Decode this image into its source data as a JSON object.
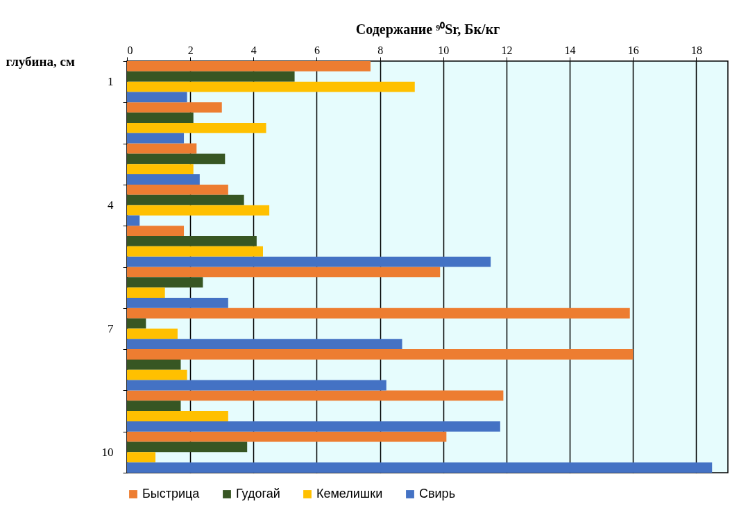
{
  "chart_data": {
    "type": "bar",
    "orientation": "horizontal",
    "xlabel": "Содержание ⁹⁰Sr, Бк/кг",
    "ylabel": "глубина, см",
    "categories": [
      "1",
      null,
      null,
      "4",
      null,
      null,
      "7",
      null,
      null,
      "10"
    ],
    "xlim": [
      0,
      19
    ],
    "xticks": [
      0,
      2,
      4,
      6,
      8,
      10,
      12,
      14,
      16,
      18
    ],
    "grid": "x",
    "legend": "bottom",
    "series": [
      {
        "name": "Быстрица",
        "color": "#ed7d31",
        "values": [
          7.7,
          3.0,
          2.2,
          3.2,
          1.8,
          9.9,
          15.9,
          16.0,
          11.9,
          10.1
        ]
      },
      {
        "name": "Гудогай",
        "color": "#375623",
        "values": [
          5.3,
          2.1,
          3.1,
          3.7,
          4.1,
          2.4,
          0.6,
          1.7,
          1.7,
          3.8
        ]
      },
      {
        "name": "Кемелишки",
        "color": "#ffc000",
        "values": [
          9.1,
          4.4,
          2.1,
          4.5,
          4.3,
          1.2,
          1.6,
          1.9,
          3.2,
          0.9
        ]
      },
      {
        "name": "Свирь",
        "color": "#4472c4",
        "values": [
          1.9,
          1.8,
          2.3,
          0.4,
          11.5,
          3.2,
          8.7,
          8.2,
          11.8,
          18.5
        ]
      }
    ]
  }
}
